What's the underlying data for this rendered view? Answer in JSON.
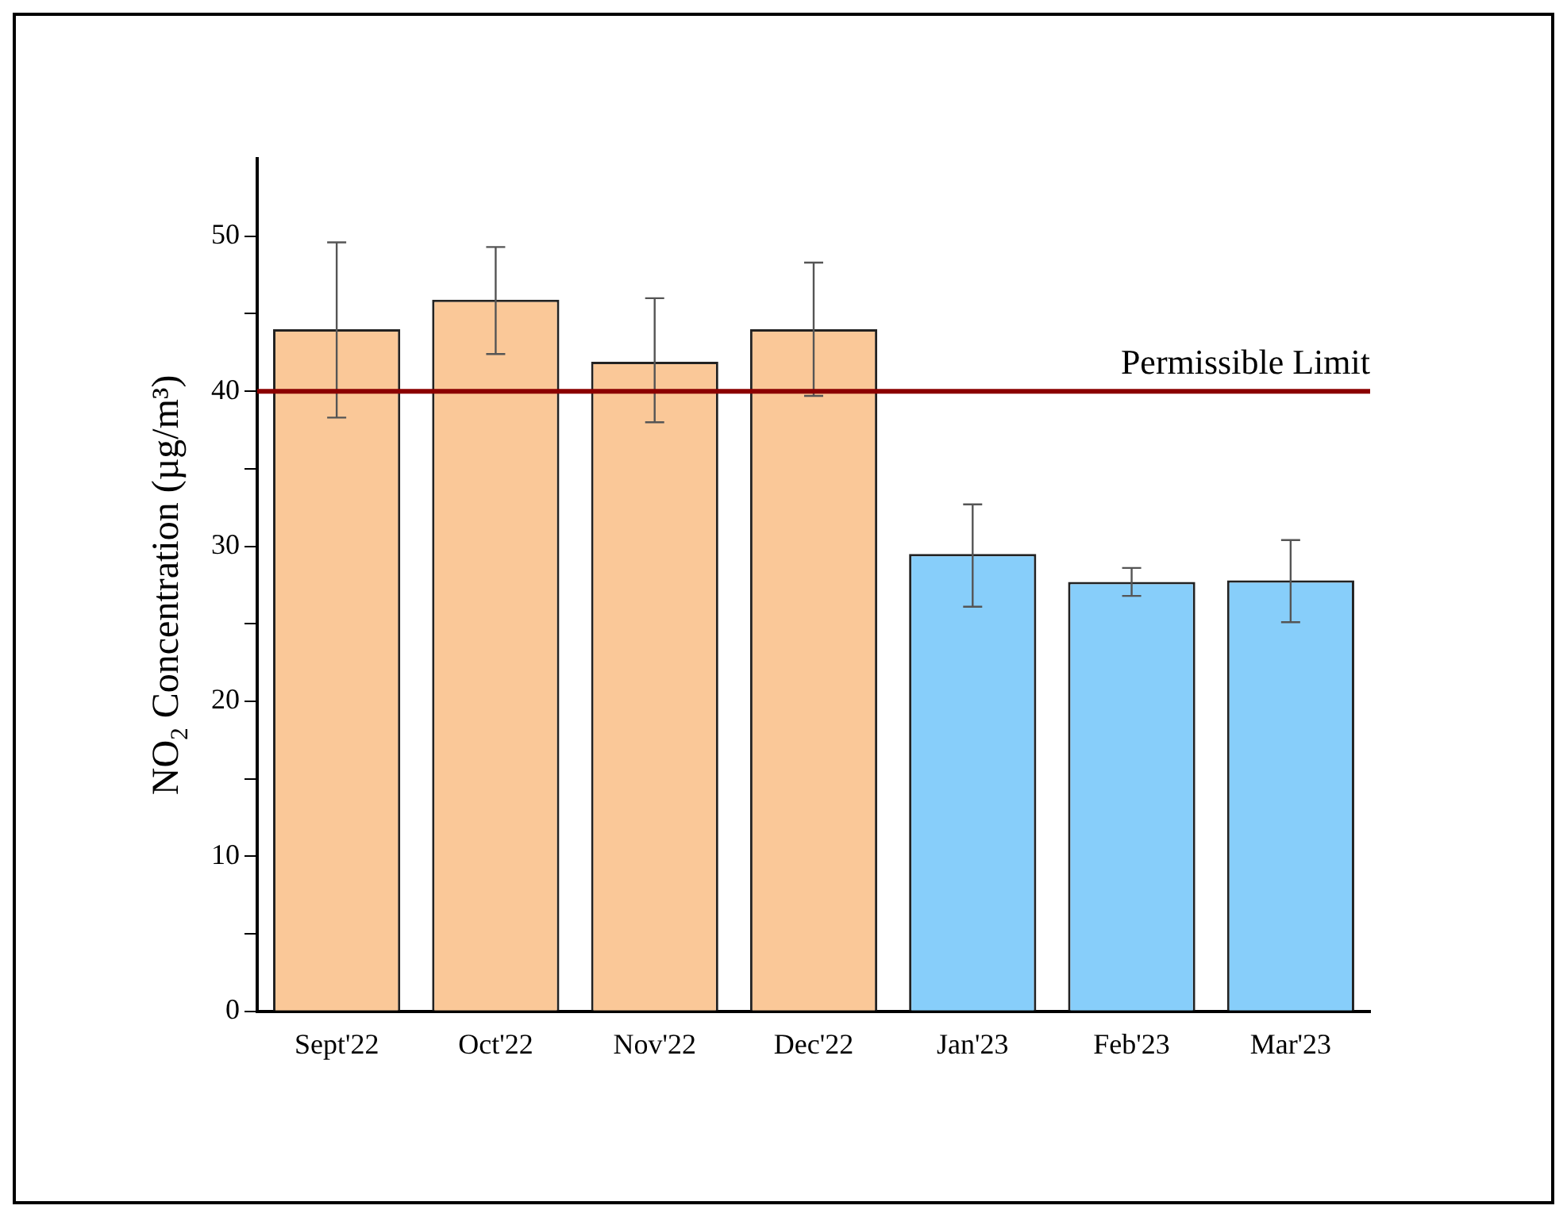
{
  "chart_data": {
    "type": "bar",
    "ylabel": "NO$_{2}$ Concentration (µg/m³)",
    "categories": [
      "Sept'22",
      "Oct'22",
      "Nov'22",
      "Dec'22",
      "Jan'23",
      "Feb'23",
      "Mar'23"
    ],
    "values": [
      44.0,
      45.9,
      41.9,
      44.0,
      29.5,
      27.7,
      27.8
    ],
    "colors": [
      "#fac898",
      "#fac898",
      "#fac898",
      "#fac898",
      "#87cefa",
      "#87cefa",
      "#87cefa"
    ],
    "errors": [
      [
        38.3,
        49.6
      ],
      [
        42.4,
        49.3
      ],
      [
        38.0,
        46.0
      ],
      [
        39.7,
        48.3
      ],
      [
        26.1,
        32.7
      ],
      [
        26.8,
        28.6
      ],
      [
        25.1,
        30.4
      ]
    ],
    "ylim": [
      0,
      55
    ],
    "yticks": [
      0,
      {
        "value": 5,
        "label": null
      },
      10,
      {
        "value": 15,
        "label": null
      },
      20,
      {
        "value": 25,
        "label": null
      },
      30,
      {
        "value": 35,
        "label": null
      },
      40,
      {
        "value": 45,
        "label": null
      },
      50
    ],
    "ref_lines": [
      {
        "axis": "y",
        "value": 40,
        "label": "Permissible Limit",
        "color": "#8b0000"
      }
    ],
    "grid": false,
    "legend": false
  }
}
